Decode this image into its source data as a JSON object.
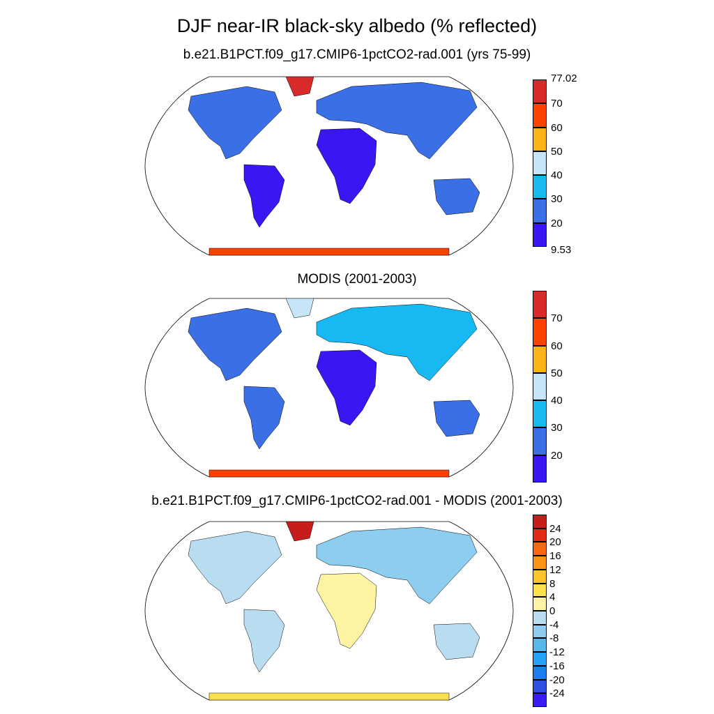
{
  "title": "DJF near-IR black-sky albedo (% reflected)",
  "panels": [
    {
      "title": "b.e21.B1PCT.f09_g17.CMIP6-1pctCO2-rad.001 (yrs 75-99)",
      "colorbar": {
        "colors": [
          "#3b16f2",
          "#3a6fe6",
          "#17b9f2",
          "#c6e5f8",
          "#fbb315",
          "#ff4100",
          "#d82a2a"
        ],
        "tick_labels": [
          "20",
          "30",
          "40",
          "50",
          "60",
          "70"
        ],
        "min_label": "9.53",
        "max_label": "77.02"
      }
    },
    {
      "title": "MODIS (2001-2003)",
      "colorbar": {
        "colors": [
          "#3b16f2",
          "#3a6fe6",
          "#17b9f2",
          "#c6e5f8",
          "#fbb315",
          "#ff4100",
          "#d82a2a"
        ],
        "tick_labels": [
          "20",
          "30",
          "40",
          "50",
          "60",
          "70"
        ]
      }
    },
    {
      "title": "b.e21.B1PCT.f09_g17.CMIP6-1pctCO2-rad.001 - MODIS (2001-2003)",
      "colorbar": {
        "colors": [
          "#3a1cf2",
          "#2f4fe0",
          "#1c7fef",
          "#23a3f5",
          "#55b9ec",
          "#8ccdf0",
          "#b9ddf0",
          "#fdf5a3",
          "#fde04d",
          "#fcc427",
          "#f99417",
          "#f66a0b",
          "#e12b13",
          "#c61c1c"
        ],
        "tick_labels": [
          "24",
          "20",
          "16",
          "12",
          "8",
          "4",
          "0",
          "-4",
          "-8",
          "-12",
          "-16",
          "-20",
          "-24"
        ]
      }
    }
  ]
}
